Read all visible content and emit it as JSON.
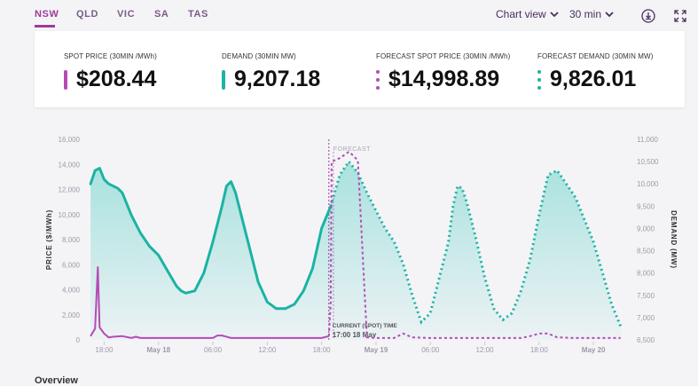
{
  "tabs": [
    {
      "label": "NSW",
      "active": true
    },
    {
      "label": "QLD",
      "active": false
    },
    {
      "label": "VIC",
      "active": false
    },
    {
      "label": "SA",
      "active": false
    },
    {
      "label": "TAS",
      "active": false
    }
  ],
  "controls": {
    "view_label": "Chart view",
    "interval_label": "30 min",
    "download_icon": "download-icon",
    "expand_icon": "expand-icon"
  },
  "stats": [
    {
      "label": "SPOT PRICE (30MIN /MWh)",
      "value": "$208.44",
      "color": "#b54bb5",
      "style": "solid"
    },
    {
      "label": "DEMAND (30MIN MW)",
      "value": "9,207.18",
      "color": "#1bb3a4",
      "style": "solid"
    },
    {
      "label": "FORECAST SPOT PRICE (30MIN /MWh)",
      "value": "$14,998.89",
      "color": "#b54bb5",
      "style": "dotted"
    },
    {
      "label": "FORECAST DEMAND (30MIN MW)",
      "value": "9,826.01",
      "color": "#1bb3a4",
      "style": "dotted"
    }
  ],
  "chart_data": {
    "type": "line",
    "y_left": {
      "label": "PRICE ($/MWh)",
      "ticks": [
        "16,000",
        "14,000",
        "12,000",
        "10,000",
        "8,000",
        "6,000",
        "4,000",
        "2,000",
        "0"
      ],
      "range": [
        0,
        16000
      ]
    },
    "y_right": {
      "label": "DEMAND (MW)",
      "ticks": [
        "11,000",
        "10,500",
        "10,000",
        "9,500",
        "9,000",
        "8,500",
        "8,000",
        "7,500",
        "7,000",
        "6,500"
      ],
      "range": [
        6500,
        11000
      ]
    },
    "x_ticks": [
      "18:00",
      "May 18",
      "06:00",
      "12:00",
      "18:00",
      "May 19",
      "06:00",
      "12:00",
      "18:00",
      "May 20"
    ],
    "x_tick_bold": [
      false,
      true,
      false,
      false,
      false,
      true,
      false,
      false,
      false,
      true
    ],
    "x_range_hours": [
      -2,
      58
    ],
    "annotations": {
      "forecast": "FORECAST",
      "current_label": "CURRENT (SPOT) TIME",
      "current_time": "17:00 18 May"
    },
    "series": [
      {
        "name": "Demand",
        "axis": "right",
        "style": "solid",
        "color": "#1bb3a4",
        "x": [
          -1.5,
          -1,
          -0.5,
          0,
          0.5,
          1,
          1.5,
          2,
          3,
          4,
          5,
          6,
          7,
          8,
          8.5,
          9,
          10,
          11,
          12,
          13,
          13.5,
          14,
          14.5,
          15,
          16,
          17,
          18,
          19,
          20,
          21,
          22,
          23,
          24,
          25
        ],
        "y": [
          10000,
          10300,
          10350,
          10100,
          10000,
          9950,
          9900,
          9800,
          9300,
          8900,
          8600,
          8400,
          8050,
          7700,
          7600,
          7550,
          7600,
          8000,
          8700,
          9500,
          9950,
          10050,
          9800,
          9400,
          8600,
          7800,
          7350,
          7200,
          7200,
          7300,
          7600,
          8100,
          9000,
          9500
        ]
      },
      {
        "name": "Forecast demand",
        "axis": "right",
        "style": "dotted",
        "color": "#1bb3a4",
        "x": [
          25,
          26,
          27,
          28,
          29,
          30,
          31,
          32,
          33,
          34,
          35,
          36,
          37,
          38,
          38.5,
          39,
          39.5,
          40,
          41,
          42,
          43,
          44,
          45,
          46,
          47,
          48,
          49,
          50,
          51,
          52,
          53,
          54,
          55,
          56,
          57
        ],
        "y": [
          9500,
          10200,
          10500,
          10250,
          9800,
          9400,
          9000,
          8700,
          8200,
          7500,
          6900,
          7100,
          7900,
          8700,
          9500,
          9950,
          9900,
          9600,
          8800,
          7900,
          7200,
          6950,
          7100,
          7600,
          8300,
          9300,
          10200,
          10300,
          10000,
          9700,
          9200,
          8700,
          8000,
          7300,
          6800
        ]
      },
      {
        "name": "Price",
        "axis": "left",
        "style": "solid",
        "color": "#b54bb5",
        "x": [
          -1.5,
          -1,
          -0.7,
          -0.5,
          0,
          0.5,
          1,
          2,
          3,
          3.5,
          4,
          6,
          8,
          10,
          12,
          12.5,
          13,
          14,
          15,
          16,
          17,
          18,
          19,
          20,
          21,
          22,
          23,
          24,
          24.8
        ],
        "y": [
          300,
          900,
          5800,
          1000,
          500,
          200,
          250,
          300,
          150,
          250,
          150,
          150,
          150,
          150,
          150,
          350,
          350,
          150,
          150,
          150,
          150,
          150,
          150,
          150,
          150,
          150,
          150,
          150,
          300
        ]
      },
      {
        "name": "Forecast price",
        "axis": "left",
        "style": "dotted",
        "color": "#b54bb5",
        "x": [
          24.8,
          25,
          25.1,
          26,
          27,
          27.5,
          28,
          29,
          30,
          31,
          32,
          33,
          34,
          36,
          38,
          40,
          42,
          44,
          46,
          47,
          48,
          49,
          50,
          52,
          54,
          56,
          57
        ],
        "y": [
          300,
          3000,
          14200,
          14500,
          14999,
          14700,
          14300,
          200,
          150,
          150,
          150,
          500,
          200,
          150,
          150,
          150,
          150,
          150,
          150,
          300,
          500,
          500,
          200,
          150,
          150,
          150,
          150
        ]
      }
    ]
  },
  "bottom_text": "Overview"
}
